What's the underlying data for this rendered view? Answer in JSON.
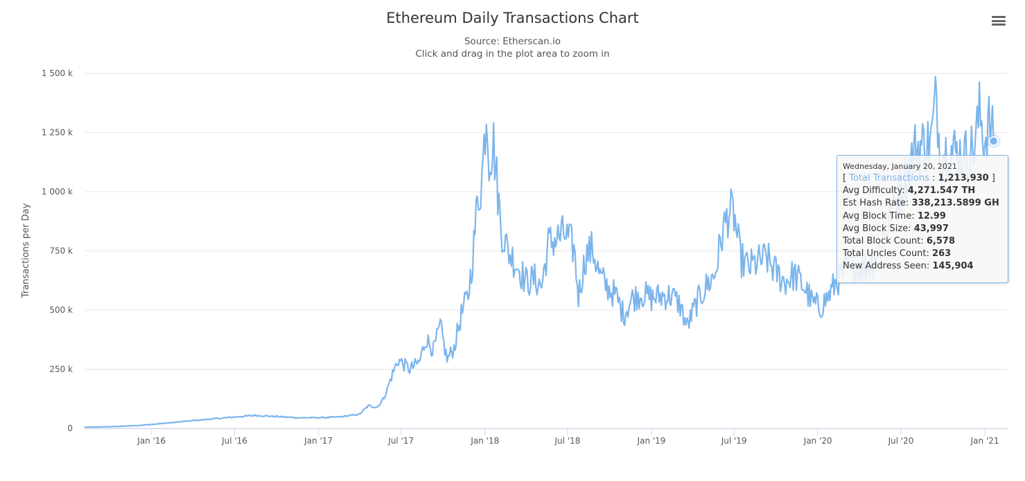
{
  "chart_data": {
    "type": "line",
    "title": "Ethereum Daily Transactions Chart",
    "subtitle_lines": [
      "Source: Etherscan.io",
      "Click and drag in the plot area to zoom in"
    ],
    "ylabel": "Transactions per Day",
    "xlabel": "",
    "ylim": [
      0,
      1500000
    ],
    "y_ticks": [
      0,
      250000,
      500000,
      750000,
      1000000,
      1250000,
      1500000
    ],
    "y_tick_labels": [
      "0",
      "250 k",
      "500 k",
      "750 k",
      "1 000 k",
      "1 250 k",
      "1 500 k"
    ],
    "x_range": [
      "2015-08-07",
      "2021-02-20"
    ],
    "x_ticks": [
      "2016-01-01",
      "2016-07-01",
      "2017-01-01",
      "2017-07-01",
      "2018-01-01",
      "2018-07-01",
      "2019-01-01",
      "2019-07-01",
      "2020-01-01",
      "2020-07-01",
      "2021-01-01"
    ],
    "x_tick_labels": [
      "Jan '16",
      "Jul '16",
      "Jan '17",
      "Jul '17",
      "Jan '18",
      "Jul '18",
      "Jan '19",
      "Jul '19",
      "Jan '20",
      "Jul '20",
      "Jan '21"
    ],
    "grid": true,
    "legend": false,
    "series": [
      {
        "name": "Total Transactions",
        "color": "#7cb5ec",
        "points": [
          [
            "2015-08-07",
            5000
          ],
          [
            "2015-10-01",
            7000
          ],
          [
            "2015-12-01",
            12000
          ],
          [
            "2016-02-01",
            22000
          ],
          [
            "2016-03-15",
            30000
          ],
          [
            "2016-05-01",
            38000
          ],
          [
            "2016-07-01",
            48000
          ],
          [
            "2016-08-15",
            55000
          ],
          [
            "2016-10-01",
            50000
          ],
          [
            "2016-11-15",
            45000
          ],
          [
            "2017-01-01",
            45000
          ],
          [
            "2017-02-15",
            48000
          ],
          [
            "2017-04-01",
            60000
          ],
          [
            "2017-04-20",
            95000
          ],
          [
            "2017-05-10",
            90000
          ],
          [
            "2017-05-25",
            130000
          ],
          [
            "2017-06-10",
            220000
          ],
          [
            "2017-06-25",
            290000
          ],
          [
            "2017-07-20",
            250000
          ],
          [
            "2017-08-10",
            280000
          ],
          [
            "2017-08-25",
            380000
          ],
          [
            "2017-09-10",
            330000
          ],
          [
            "2017-09-25",
            430000
          ],
          [
            "2017-10-10",
            290000
          ],
          [
            "2017-10-25",
            340000
          ],
          [
            "2017-11-10",
            480000
          ],
          [
            "2017-11-25",
            560000
          ],
          [
            "2017-12-05",
            720000
          ],
          [
            "2017-12-15",
            950000
          ],
          [
            "2017-12-25",
            1050000
          ],
          [
            "2018-01-04",
            1350000
          ],
          [
            "2018-01-10",
            1150000
          ],
          [
            "2018-01-20",
            1200000
          ],
          [
            "2018-02-05",
            850000
          ],
          [
            "2018-02-20",
            750000
          ],
          [
            "2018-03-10",
            700000
          ],
          [
            "2018-04-01",
            620000
          ],
          [
            "2018-04-20",
            630000
          ],
          [
            "2018-05-05",
            600000
          ],
          [
            "2018-05-20",
            780000
          ],
          [
            "2018-06-05",
            800000
          ],
          [
            "2018-06-25",
            820000
          ],
          [
            "2018-07-15",
            760000
          ],
          [
            "2018-07-25",
            560000
          ],
          [
            "2018-08-10",
            730000
          ],
          [
            "2018-08-25",
            760000
          ],
          [
            "2018-09-10",
            640000
          ],
          [
            "2018-09-25",
            600000
          ],
          [
            "2018-10-15",
            560000
          ],
          [
            "2018-11-01",
            480000
          ],
          [
            "2018-11-20",
            550000
          ],
          [
            "2018-12-10",
            570000
          ],
          [
            "2019-01-01",
            550000
          ],
          [
            "2019-01-25",
            560000
          ],
          [
            "2019-02-15",
            560000
          ],
          [
            "2019-03-05",
            520000
          ],
          [
            "2019-03-20",
            430000
          ],
          [
            "2019-04-10",
            530000
          ],
          [
            "2019-05-01",
            600000
          ],
          [
            "2019-05-20",
            650000
          ],
          [
            "2019-06-05",
            820000
          ],
          [
            "2019-06-20",
            920000
          ],
          [
            "2019-07-01",
            900000
          ],
          [
            "2019-07-15",
            720000
          ],
          [
            "2019-08-01",
            680000
          ],
          [
            "2019-08-20",
            700000
          ],
          [
            "2019-09-10",
            720000
          ],
          [
            "2019-10-01",
            660000
          ],
          [
            "2019-10-20",
            620000
          ],
          [
            "2019-11-10",
            650000
          ],
          [
            "2019-12-01",
            600000
          ],
          [
            "2019-12-20",
            530000
          ],
          [
            "2020-01-05",
            510000
          ],
          [
            "2020-01-25",
            560000
          ],
          [
            "2020-02-10",
            620000
          ],
          [
            "2020-02-25",
            650000
          ],
          [
            "2020-03-15",
            700000
          ],
          [
            "2020-04-05",
            680000
          ],
          [
            "2020-04-25",
            690000
          ],
          [
            "2020-05-15",
            760000
          ],
          [
            "2020-06-05",
            880000
          ],
          [
            "2020-06-25",
            980000
          ],
          [
            "2020-07-15",
            1080000
          ],
          [
            "2020-08-01",
            1180000
          ],
          [
            "2020-08-20",
            1200000
          ],
          [
            "2020-09-05",
            1210000
          ],
          [
            "2020-09-17",
            1410000
          ],
          [
            "2020-09-25",
            1150000
          ],
          [
            "2020-10-15",
            1180000
          ],
          [
            "2020-11-05",
            1160000
          ],
          [
            "2020-11-25",
            1150000
          ],
          [
            "2020-12-10",
            1200000
          ],
          [
            "2020-12-20",
            1330000
          ],
          [
            "2021-01-01",
            1220000
          ],
          [
            "2021-01-10",
            1290000
          ],
          [
            "2021-01-20",
            1213930
          ]
        ]
      }
    ]
  },
  "tooltip": {
    "date": "Wednesday, January 20, 2021",
    "highlight_x": "2021-01-20",
    "highlight_value": 1213930,
    "series_label": "Total Transactions",
    "series_value": "1,213,930",
    "rows": [
      {
        "label": "Avg Difficulty:",
        "value": "4,271.547 TH"
      },
      {
        "label": "Est Hash Rate:",
        "value": "338,213.5899 GH"
      },
      {
        "label": "Avg Block Time:",
        "value": "12.99"
      },
      {
        "label": "Avg Block Size:",
        "value": "43,997"
      },
      {
        "label": "Total Block Count:",
        "value": "6,578"
      },
      {
        "label": "Total Uncles Count:",
        "value": "263"
      },
      {
        "label": "New Address Seen:",
        "value": "145,904"
      }
    ]
  },
  "menu": {
    "icon": "hamburger-menu-icon"
  }
}
